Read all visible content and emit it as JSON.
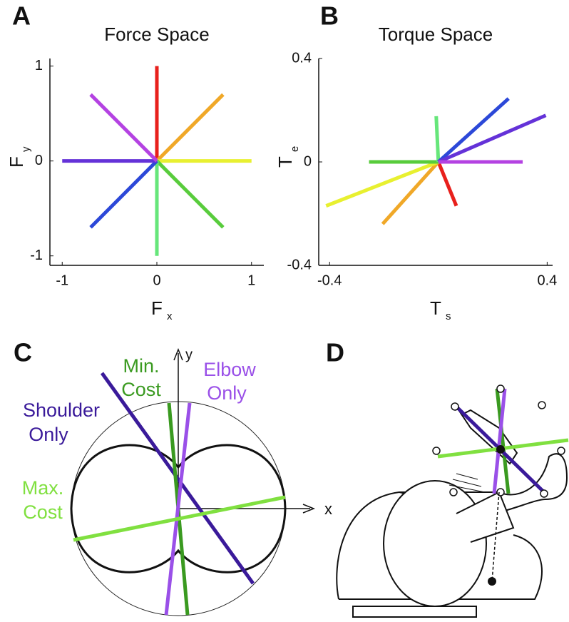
{
  "chart_data": [
    {
      "type": "line",
      "panel": "A",
      "title": "Force Space",
      "xlabel": {
        "main": "F",
        "sub": "x"
      },
      "ylabel": {
        "main": "F",
        "sub": "y"
      },
      "xlim": [
        -1.13,
        1.13
      ],
      "ylim": [
        -1.1,
        1.08
      ],
      "xticks": [
        -1,
        0,
        1
      ],
      "yticks": [
        -1,
        0,
        1
      ],
      "series": [
        {
          "color": "#e8201c",
          "x": [
            0,
            0
          ],
          "values": [
            0,
            1
          ]
        },
        {
          "color": "#f0a828",
          "x": [
            0,
            0.7
          ],
          "values": [
            0,
            0.7
          ]
        },
        {
          "color": "#e8f030",
          "x": [
            0,
            1
          ],
          "values": [
            0,
            0
          ]
        },
        {
          "color": "#58cc3c",
          "x": [
            0,
            0.7
          ],
          "values": [
            0,
            -0.7
          ]
        },
        {
          "color": "#66e67a",
          "x": [
            0,
            0
          ],
          "values": [
            0,
            -1
          ]
        },
        {
          "color": "#2c48d8",
          "x": [
            0,
            -0.7
          ],
          "values": [
            0,
            -0.7
          ]
        },
        {
          "color": "#6432d8",
          "x": [
            0,
            -1
          ],
          "values": [
            0,
            0
          ]
        },
        {
          "color": "#b442e2",
          "x": [
            0,
            -0.7
          ],
          "values": [
            0,
            0.7
          ]
        }
      ]
    },
    {
      "type": "line",
      "panel": "B",
      "title": "Torque Space",
      "xlabel": {
        "main": "T",
        "sub": "s"
      },
      "ylabel": {
        "main": "T",
        "sub": "e"
      },
      "xlim": [
        -0.44,
        0.42
      ],
      "ylim": [
        -0.4,
        0.4
      ],
      "xticks": [
        -0.4,
        0.4
      ],
      "yticks": [
        -0.4,
        0,
        0.4
      ],
      "series": [
        {
          "color": "#e8201c",
          "x": [
            0,
            0.066
          ],
          "values": [
            0,
            -0.17
          ]
        },
        {
          "color": "#f0a828",
          "x": [
            0,
            -0.205
          ],
          "values": [
            0,
            -0.24
          ]
        },
        {
          "color": "#e8f030",
          "x": [
            0,
            -0.413
          ],
          "values": [
            0,
            -0.17
          ]
        },
        {
          "color": "#58cc3c",
          "x": [
            0,
            -0.255
          ],
          "values": [
            0,
            0
          ]
        },
        {
          "color": "#66e67a",
          "x": [
            0,
            -0.008
          ],
          "values": [
            0,
            0.177
          ]
        },
        {
          "color": "#2c48d8",
          "x": [
            0,
            0.258
          ],
          "values": [
            0,
            0.245
          ]
        },
        {
          "color": "#6432d8",
          "x": [
            0,
            0.395
          ],
          "values": [
            0,
            0.18
          ]
        },
        {
          "color": "#b442e2",
          "x": [
            0,
            0.31
          ],
          "values": [
            0,
            0
          ]
        }
      ]
    }
  ],
  "panel_labels": [
    "A",
    "B",
    "C",
    "D"
  ],
  "diagram": {
    "axis_x": "x",
    "axis_y": "y",
    "labels": [
      {
        "lines": [
          "Min.",
          "Cost"
        ]
      },
      {
        "lines": [
          "Elbow",
          "Only"
        ]
      },
      {
        "lines": [
          "Shoulder",
          "Only"
        ]
      },
      {
        "lines": [
          "Max.",
          "Cost"
        ]
      }
    ]
  }
}
